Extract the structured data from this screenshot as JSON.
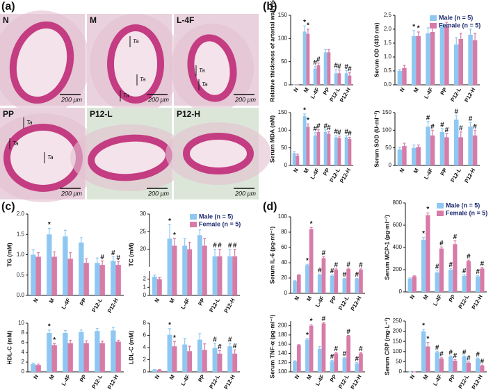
{
  "panels": [
    "(a)",
    "(b)",
    "(c)",
    "(d)"
  ],
  "micrographs": [
    {
      "label": "N",
      "scale_bar": "200 μm",
      "annotations": []
    },
    {
      "label": "M",
      "scale_bar": "200 μm",
      "annotations": [
        "Ta",
        "Ta",
        "Ta"
      ]
    },
    {
      "label": "L-4F",
      "scale_bar": "200 μm",
      "annotations": [
        "Ta",
        "Ta"
      ]
    },
    {
      "label": "PP",
      "scale_bar": "200 μm",
      "annotations": [
        "Ta",
        "Ta",
        "Ta"
      ]
    },
    {
      "label": "P12-L",
      "scale_bar": "200 μm",
      "annotations": []
    },
    {
      "label": "P12-H",
      "scale_bar": "200 μm",
      "annotations": []
    }
  ],
  "chart_data": [
    {
      "type": "bar",
      "y_label": "Relative thickness of arterial wall (%)",
      "categories": [
        "N",
        "M",
        "L-4F",
        "PP",
        "P12-L",
        "P12-H"
      ],
      "ylim": [
        0,
        150
      ],
      "yticks": [
        0,
        50,
        100,
        150
      ],
      "series": [
        {
          "color": "#8ec8f2",
          "values": [
            0,
            115,
            35,
            70,
            25,
            25
          ],
          "errors": [
            0,
            12,
            5,
            6,
            8,
            6
          ],
          "markers": [
            null,
            "*",
            "#",
            null,
            "#",
            "#"
          ]
        },
        {
          "color": "#d77ba8",
          "values": [
            0,
            110,
            42,
            70,
            25,
            20
          ],
          "errors": [
            0,
            10,
            5,
            6,
            7,
            6
          ],
          "markers": [
            null,
            "*",
            "#",
            null,
            "#",
            "#"
          ]
        }
      ]
    },
    {
      "type": "bar",
      "y_label": "Serum OD (430 nm)",
      "categories": [
        "N",
        "M",
        "L-4F",
        "PP",
        "P12-L",
        "P12-H"
      ],
      "ylim": [
        0,
        2.5
      ],
      "yticks": [
        {
          "value": 0,
          "label": "0.0"
        },
        0.5,
        {
          "value": 1,
          "label": "1.0"
        },
        1.5,
        {
          "value": 2,
          "label": "2.0"
        },
        2.5
      ],
      "legend": "top-right",
      "series": [
        {
          "name": "Male (n = 5)",
          "color": "#8ec8f2",
          "values": [
            0.5,
            1.75,
            1.85,
            2.1,
            1.45,
            1.8
          ],
          "errors": [
            0.05,
            0.2,
            0.2,
            0.1,
            0.25,
            0.2
          ],
          "markers": [
            null,
            "*",
            null,
            null,
            null,
            null
          ]
        },
        {
          "name": "Female (n = 5)",
          "color": "#d77ba8",
          "values": [
            0.6,
            1.75,
            1.9,
            2.1,
            1.65,
            1.6
          ],
          "errors": [
            0.1,
            0.15,
            0.2,
            0.15,
            0.2,
            0.25
          ],
          "markers": [
            null,
            "*",
            null,
            null,
            null,
            null
          ]
        }
      ]
    },
    {
      "type": "bar",
      "y_label": "Serum MDA (nM)",
      "categories": [
        "N",
        "M",
        "L-4F",
        "PP",
        "P12-L",
        "P12-H"
      ],
      "ylim": [
        0,
        150
      ],
      "yticks": [
        0,
        50,
        100,
        150
      ],
      "series": [
        {
          "color": "#8ec8f2",
          "values": [
            35,
            140,
            85,
            95,
            80,
            80
          ],
          "errors": [
            4,
            6,
            8,
            6,
            5,
            5
          ],
          "markers": [
            null,
            "*",
            "#",
            "#",
            "#",
            "#"
          ]
        },
        {
          "color": "#d77ba8",
          "values": [
            28,
            110,
            95,
            90,
            78,
            75
          ],
          "errors": [
            4,
            8,
            6,
            6,
            5,
            5
          ],
          "markers": [
            null,
            "*",
            "#",
            "#",
            "#",
            "#"
          ]
        }
      ]
    },
    {
      "type": "bar",
      "y_label": "Serum SOD (U·ml⁻¹)",
      "categories": [
        "N",
        "M",
        "L-4F",
        "PP",
        "P12-L",
        "P12-H"
      ],
      "ylim": [
        0,
        150
      ],
      "yticks": [
        0,
        50,
        100,
        150
      ],
      "series": [
        {
          "color": "#8ec8f2",
          "values": [
            45,
            50,
            110,
            95,
            130,
            110
          ],
          "errors": [
            6,
            8,
            15,
            10,
            12,
            12
          ],
          "markers": [
            null,
            null,
            "#",
            "#",
            "#",
            "#"
          ]
        },
        {
          "color": "#d77ba8",
          "values": [
            55,
            52,
            85,
            80,
            80,
            85
          ],
          "errors": [
            8,
            6,
            15,
            10,
            15,
            15
          ],
          "markers": [
            null,
            null,
            "#",
            "#",
            "#",
            "#"
          ]
        }
      ]
    },
    {
      "type": "bar",
      "y_label": "TG (mM)",
      "categories": [
        "N",
        "M",
        "L-4F",
        "PP",
        "P12-L",
        "P12-H"
      ],
      "ylim": [
        0,
        2
      ],
      "yticks": [
        {
          "value": 0,
          "label": "0.0"
        },
        0.5,
        {
          "value": 1,
          "label": "1.0"
        },
        1.5,
        {
          "value": 2,
          "label": "2.0"
        }
      ],
      "series": [
        {
          "color": "#8ec8f2",
          "values": [
            1.0,
            1.5,
            1.45,
            1.3,
            0.8,
            0.85
          ],
          "errors": [
            0.12,
            0.15,
            0.15,
            0.12,
            0.12,
            0.1
          ],
          "markers": [
            null,
            "*",
            null,
            null,
            null,
            "#"
          ]
        },
        {
          "color": "#d77ba8",
          "values": [
            0.95,
            0.95,
            0.9,
            0.8,
            0.75,
            0.75
          ],
          "errors": [
            0.1,
            0.12,
            0.15,
            0.1,
            0.1,
            0.08
          ],
          "markers": [
            null,
            null,
            null,
            null,
            "#",
            "#"
          ]
        }
      ]
    },
    {
      "type": "bar",
      "y_label": "TC (mM)",
      "categories": [
        "N",
        "M",
        "L-4F",
        "PP",
        "P12-L",
        "P12-H"
      ],
      "ylim": [
        0,
        30
      ],
      "ybreak": [
        3,
        15
      ],
      "yticks": [
        0,
        1,
        2,
        20,
        25,
        30
      ],
      "legend": "top-right",
      "series": [
        {
          "name": "Male (n = 5)",
          "color": "#8ec8f2",
          "values": [
            2.3,
            23,
            21,
            24,
            18,
            18
          ],
          "errors": [
            0.2,
            4,
            2,
            1.5,
            2,
            2
          ],
          "markers": [
            null,
            "*",
            null,
            null,
            "#",
            "#"
          ]
        },
        {
          "name": "Female (n = 5)",
          "color": "#d77ba8",
          "values": [
            2.0,
            21,
            20,
            21,
            18,
            18
          ],
          "errors": [
            0.2,
            2,
            2,
            2,
            2,
            2
          ],
          "markers": [
            null,
            "*",
            null,
            null,
            "#",
            "#"
          ]
        }
      ]
    },
    {
      "type": "bar",
      "y_label": "HDL-C (mM)",
      "categories": [
        "N",
        "M",
        "L-4F",
        "PP",
        "P12-L",
        "P12-H"
      ],
      "ylim": [
        0,
        10
      ],
      "yticks": [
        0,
        2,
        4,
        6,
        8,
        10
      ],
      "series": [
        {
          "color": "#8ec8f2",
          "values": [
            1.6,
            8.0,
            8.0,
            8.2,
            8.4,
            8.5
          ],
          "errors": [
            0.2,
            0.6,
            0.5,
            0.4,
            0.5,
            0.6
          ],
          "markers": [
            null,
            "*",
            null,
            null,
            null,
            null
          ]
        },
        {
          "color": "#d77ba8",
          "values": [
            1.4,
            5.5,
            5.9,
            5.9,
            5.9,
            6.2
          ],
          "errors": [
            0.2,
            0.3,
            0.6,
            0.5,
            0.4,
            0.3
          ],
          "markers": [
            null,
            "*",
            null,
            null,
            null,
            null
          ]
        }
      ]
    },
    {
      "type": "bar",
      "y_label": "LDL-C (mM)",
      "categories": [
        "N",
        "M",
        "L-4F",
        "PP",
        "P12-L",
        "P12-H"
      ],
      "ylim": [
        0,
        8
      ],
      "yticks": [
        0,
        2,
        4,
        6,
        8
      ],
      "series": [
        {
          "color": "#8ec8f2",
          "values": [
            0.3,
            6.1,
            4.5,
            5.3,
            3.9,
            4.2
          ],
          "errors": [
            0.1,
            1,
            1,
            1,
            0.8,
            0.5
          ],
          "markers": [
            null,
            "*",
            null,
            null,
            "#",
            "#"
          ]
        },
        {
          "color": "#d77ba8",
          "values": [
            0.3,
            4.2,
            3.4,
            3.6,
            3.0,
            3.0
          ],
          "errors": [
            0.1,
            0.8,
            0.8,
            1,
            0.5,
            0.6
          ],
          "markers": [
            null,
            "*",
            null,
            null,
            "#",
            "#"
          ]
        }
      ]
    },
    {
      "type": "bar",
      "y_label": "Serum IL-6 (pg·ml⁻¹)",
      "categories": [
        "N",
        "M",
        "L-4F",
        "PP",
        "P12-L",
        "P12-H"
      ],
      "ylim": [
        0,
        100
      ],
      "yticks": [
        0,
        20,
        40,
        60,
        80,
        100
      ],
      "series": [
        {
          "color": "#8ec8f2",
          "values": [
            16,
            37,
            24,
            23,
            19,
            19
          ],
          "errors": [
            0.5,
            1,
            1,
            1,
            0.5,
            0.5
          ],
          "markers": [
            null,
            "*",
            "#",
            "#",
            "#",
            "#"
          ]
        },
        {
          "color": "#d77ba8",
          "values": [
            24,
            84,
            46,
            31,
            32,
            31
          ],
          "errors": [
            0.5,
            2,
            2,
            1,
            1,
            1
          ],
          "markers": [
            null,
            "*",
            "#",
            "#",
            "#",
            "#"
          ]
        }
      ]
    },
    {
      "type": "bar",
      "y_label": "Serum MCP-1 (pg·ml⁻¹)",
      "categories": [
        "N",
        "M",
        "L-4F",
        "PP",
        "P12-L",
        "P12-H"
      ],
      "ylim": [
        0,
        800
      ],
      "yticks": [
        0,
        200,
        400,
        600,
        800
      ],
      "legend": "top-right",
      "series": [
        {
          "name": "Male (n = 5)",
          "color": "#8ec8f2",
          "values": [
            120,
            470,
            175,
            200,
            145,
            140
          ],
          "errors": [
            5,
            20,
            20,
            10,
            8,
            8
          ],
          "markers": [
            null,
            "*",
            "#",
            "#",
            "#",
            "#"
          ]
        },
        {
          "name": "Female (n = 5)",
          "color": "#d77ba8",
          "values": [
            140,
            690,
            390,
            430,
            275,
            210
          ],
          "errors": [
            5,
            20,
            15,
            30,
            10,
            10
          ],
          "markers": [
            null,
            "*",
            "#",
            "#",
            "#",
            "#"
          ]
        }
      ]
    },
    {
      "type": "bar",
      "y_label": "Serum TNF-α (pg·ml⁻¹)",
      "categories": [
        "N",
        "M",
        "L-4F",
        "PP",
        "P12-L",
        "P12-H"
      ],
      "ylim": [
        100,
        210
      ],
      "yticks": [
        100,
        120,
        140,
        160,
        180,
        200
      ],
      "series": [
        {
          "color": "#8ec8f2",
          "values": [
            123,
            170,
            150,
            123,
            130,
            118
          ],
          "errors": [
            1,
            2,
            5,
            2,
            1,
            2
          ],
          "markers": [
            null,
            "*",
            null,
            "#",
            "#",
            "#"
          ]
        },
        {
          "color": "#d77ba8",
          "values": [
            158,
            200,
            205,
            140,
            178,
            140
          ],
          "errors": [
            1,
            2,
            2,
            2,
            1,
            2
          ],
          "markers": [
            null,
            "*",
            "#",
            "#",
            "#",
            "#"
          ]
        }
      ]
    },
    {
      "type": "bar",
      "y_label": "Serum CRP (mg·L⁻¹)",
      "categories": [
        "N",
        "M",
        "L-4F",
        "PP",
        "P12-L",
        "P12-H"
      ],
      "ylim": [
        0,
        250
      ],
      "yticks": [
        0,
        50,
        100,
        150,
        200,
        250
      ],
      "series": [
        {
          "color": "#8ec8f2",
          "values": [
            0,
            200,
            97,
            75,
            75,
            65
          ],
          "errors": [
            0,
            10,
            5,
            3,
            3,
            3
          ],
          "markers": [
            null,
            "*",
            "#",
            "#",
            "#",
            "#"
          ]
        },
        {
          "color": "#d77ba8",
          "values": [
            0,
            125,
            65,
            55,
            45,
            30
          ],
          "errors": [
            0,
            20,
            4,
            5,
            4,
            3
          ],
          "markers": [
            null,
            "*",
            "#",
            "#",
            "#",
            "#"
          ]
        }
      ]
    }
  ]
}
